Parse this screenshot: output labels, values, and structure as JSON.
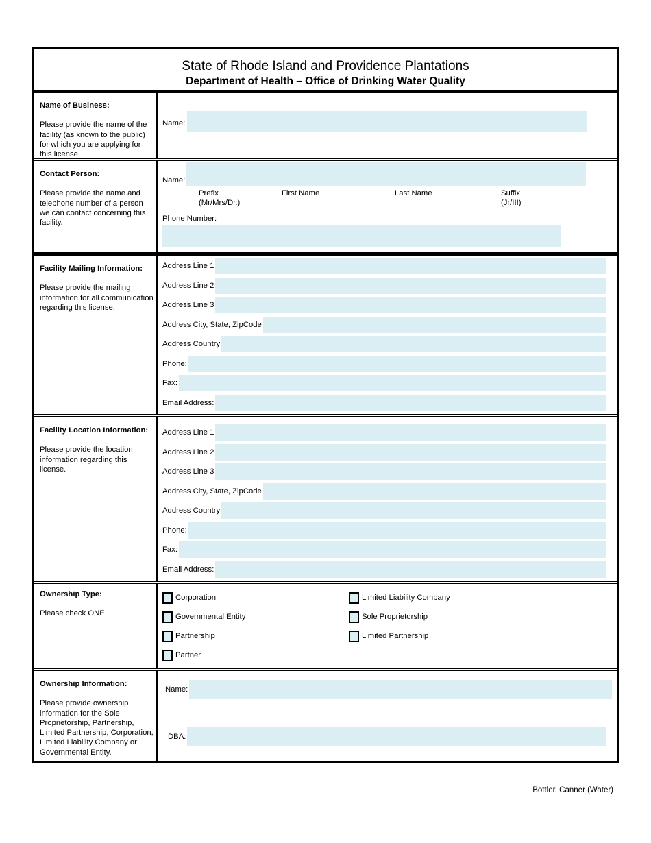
{
  "header": {
    "title": "State of Rhode Island and Providence Plantations",
    "subtitle": "Department of Health – Office of Drinking Water Quality"
  },
  "colors": {
    "field_background": "#daeef3",
    "border": "#000000"
  },
  "sections": {
    "business": {
      "heading": "Name of Business:",
      "description": "Please provide the name of the facility (as known to the public) for which you are applying for this license.",
      "name_label": "Name:"
    },
    "contact": {
      "heading": "Contact Person:",
      "description": "Please provide the name and telephone number of a person we can contact concerning this facility.",
      "name_label": "Name:",
      "phone_label": "Phone Number:",
      "name_columns": [
        {
          "label": "Prefix",
          "sublabel": "(Mr/Mrs/Dr.)"
        },
        {
          "label": "First Name",
          "sublabel": ""
        },
        {
          "label": "Last Name",
          "sublabel": ""
        },
        {
          "label": "Suffix",
          "sublabel": "(Jr/III)"
        }
      ]
    },
    "mailing": {
      "heading": "Facility Mailing Information:",
      "description": "Please provide the mailing information for all communication regarding this license.",
      "fields": [
        "Address Line 1",
        "Address Line 2",
        "Address Line 3",
        "Address City, State, ZipCode",
        "Address Country",
        "Phone:",
        "Fax:",
        "Email Address:"
      ]
    },
    "location": {
      "heading": "Facility Location Information:",
      "description": "Please provide the location information regarding this license.",
      "fields": [
        "Address Line 1",
        "Address Line 2",
        "Address Line 3",
        "Address City, State, ZipCode",
        "Address Country",
        "Phone:",
        "Fax:",
        "Email Address:"
      ]
    },
    "ownership_type": {
      "heading": "Ownership Type:",
      "instruction": "Please check ONE",
      "column1": [
        "Corporation",
        "Governmental Entity",
        "Partnership",
        "Partner"
      ],
      "column2": [
        "Limited Liability Company",
        "Sole Proprietorship",
        "Limited Partnership"
      ]
    },
    "ownership_info": {
      "heading": "Ownership Information:",
      "description": "Please provide ownership information for the Sole Proprietorship, Partnership, Limited Partnership, Corporation, Limited Liability Company or Governmental Entity.",
      "name_label": "Name:",
      "dba_label": "DBA:"
    }
  },
  "footer": {
    "text": "Bottler, Canner (Water)"
  }
}
